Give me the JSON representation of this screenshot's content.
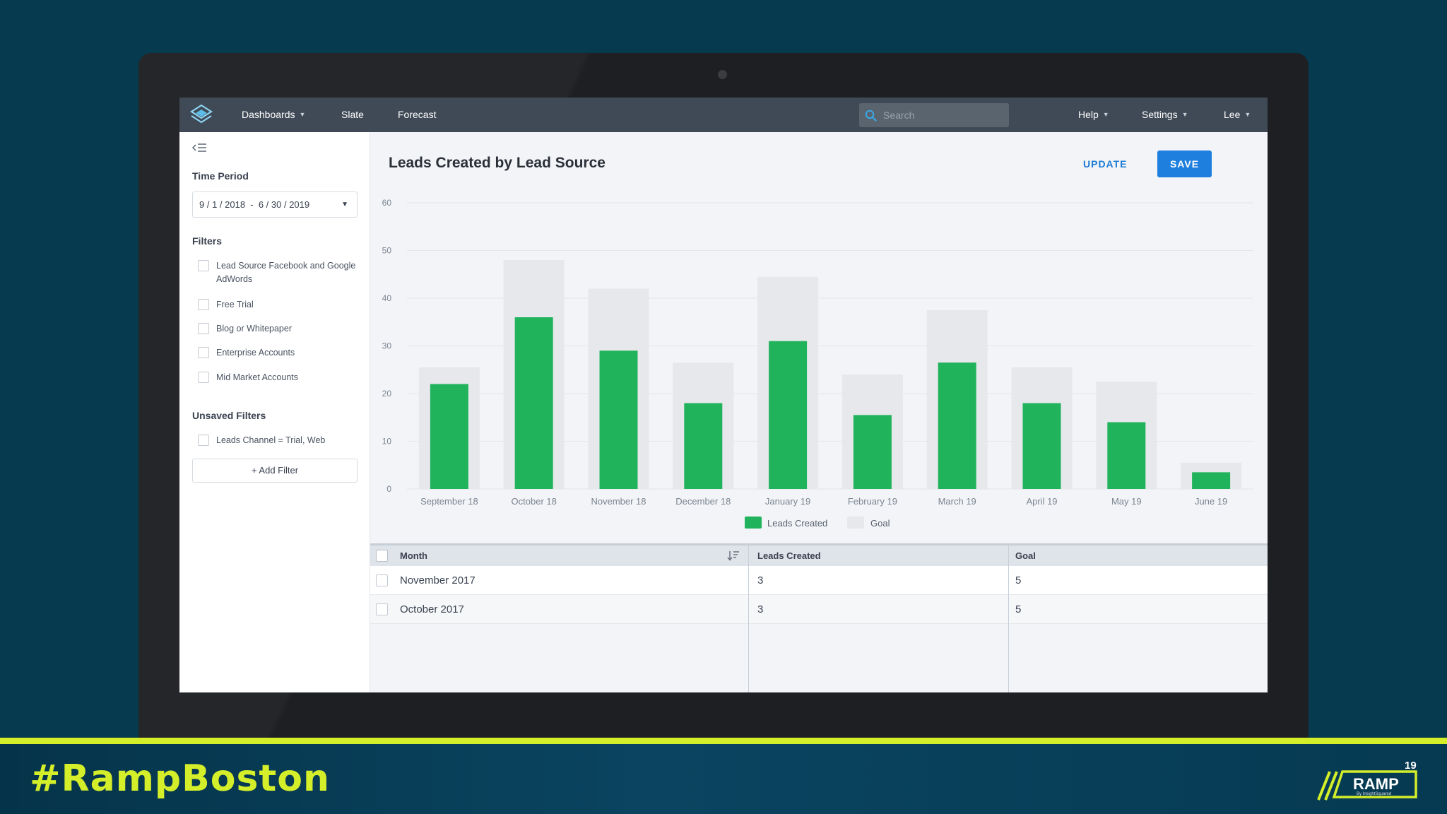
{
  "nav": {
    "logo_icon": "layers-logo-icon",
    "dashboards": "Dashboards",
    "slate": "Slate",
    "forecast": "Forecast",
    "search_placeholder": "Search",
    "help": "Help",
    "settings": "Settings",
    "user": "Lee"
  },
  "sidebar": {
    "collapse_icon": "collapse-sidebar-icon",
    "time_period_heading": "Time Period",
    "date_range": "9 / 1 / 2018  -  6 / 30 / 2019",
    "filters_heading": "Filters",
    "filters": [
      {
        "label": "Lead Source Facebook and Google AdWords",
        "checked": false
      },
      {
        "label": "Free Trial",
        "checked": false
      },
      {
        "label": "Blog or Whitepaper",
        "checked": false
      },
      {
        "label": "Enterprise Accounts",
        "checked": false
      },
      {
        "label": "Mid Market Accounts",
        "checked": false
      }
    ],
    "unsaved_heading": "Unsaved Filters",
    "unsaved_filters": [
      {
        "label": "Leads Channel = Trial, Web",
        "checked": false
      }
    ],
    "add_filter": "+ Add Filter"
  },
  "main": {
    "title": "Leads Created by Lead Source",
    "update_label": "UPDATE",
    "save_label": "SAVE"
  },
  "chart_data": {
    "type": "bar",
    "categories": [
      "September 18",
      "October 18",
      "November 18",
      "December 18",
      "January 19",
      "February 19",
      "March 19",
      "April 19",
      "May 19",
      "June 19"
    ],
    "series": [
      {
        "name": "Leads Created",
        "values": [
          22,
          36,
          29,
          18,
          31,
          15.5,
          26.5,
          18,
          14,
          3.5
        ],
        "color": "#21b35c"
      },
      {
        "name": "Goal",
        "values": [
          25.5,
          48,
          42,
          26.5,
          44.5,
          24,
          37.5,
          25.5,
          22.5,
          5.5
        ],
        "color": "#e6e8eb"
      }
    ],
    "yticks": [
      0,
      10,
      20,
      30,
      40,
      50,
      60
    ],
    "ylim": [
      0,
      60
    ],
    "grid": true,
    "legend_position": "bottom-center"
  },
  "table": {
    "columns": [
      "Month",
      "Leads Created",
      "Goal"
    ],
    "sort_icon": "sort-descending-icon",
    "rows": [
      [
        "November 2017",
        "3",
        "5"
      ],
      [
        "October 2017",
        "3",
        "5"
      ]
    ]
  },
  "banner": {
    "hashtag": "#RampBoston",
    "logo_word": "RAMP",
    "logo_number": "19",
    "logo_byline": "By InsightSquared",
    "stripe_color": "#d4ee2a"
  }
}
